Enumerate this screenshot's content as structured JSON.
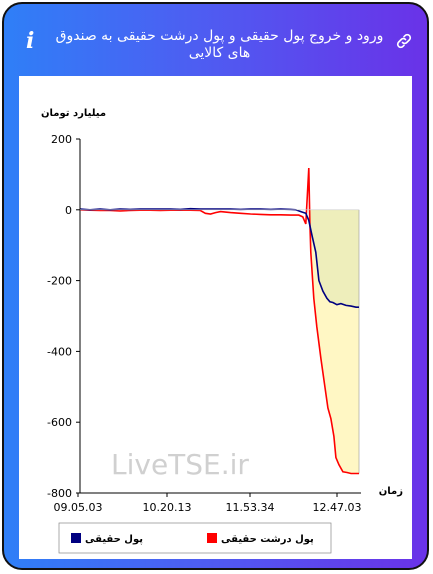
{
  "header": {
    "title": "ورود و خروج پول حقیقی و پول درشت حقیقی به صندوق های کالایی",
    "info_icon": "i",
    "link_icon": "link-icon",
    "info_icon_name": "info-icon"
  },
  "watermark": "LiveTSE.ir",
  "chart_data": {
    "type": "line",
    "ylabel": "میلیارد تومان",
    "xlabel": "زمان",
    "ylim": [
      -800,
      200
    ],
    "yticks": [
      200,
      0,
      -200,
      -400,
      -600,
      -800
    ],
    "xticks": [
      "09.05.03",
      "10.20.13",
      "11.53.34",
      "12.47.03"
    ],
    "grid": false,
    "legend_placement": "bottom",
    "series": [
      {
        "name": "پول حقیقی",
        "color": "#000080",
        "fill": "#eeeebb",
        "points": [
          [
            0,
            2
          ],
          [
            10,
            0
          ],
          [
            20,
            2
          ],
          [
            30,
            0
          ],
          [
            40,
            2
          ],
          [
            50,
            1
          ],
          [
            60,
            2
          ],
          [
            70,
            2
          ],
          [
            80,
            2
          ],
          [
            90,
            2
          ],
          [
            100,
            1
          ],
          [
            110,
            3
          ],
          [
            120,
            2
          ],
          [
            130,
            2
          ],
          [
            140,
            2
          ],
          [
            150,
            2
          ],
          [
            160,
            1
          ],
          [
            170,
            2
          ],
          [
            180,
            2
          ],
          [
            190,
            1
          ],
          [
            200,
            2
          ],
          [
            210,
            1
          ],
          [
            215,
            0
          ],
          [
            220,
            -5
          ],
          [
            225,
            -10
          ],
          [
            228,
            -30
          ],
          [
            231,
            -70
          ],
          [
            235,
            -120
          ],
          [
            238,
            -200
          ],
          [
            242,
            -230
          ],
          [
            246,
            -250
          ],
          [
            249,
            -260
          ],
          [
            252,
            -262
          ],
          [
            256,
            -268
          ],
          [
            260,
            -265
          ],
          [
            265,
            -270
          ],
          [
            270,
            -272
          ],
          [
            275,
            -275
          ],
          [
            278,
            -275
          ]
        ]
      },
      {
        "name": "پول درشت حقیقی",
        "color": "#ff0000",
        "fill": "#fff7c4",
        "points": [
          [
            0,
            0
          ],
          [
            10,
            -1
          ],
          [
            20,
            -2
          ],
          [
            30,
            -2
          ],
          [
            40,
            -3
          ],
          [
            50,
            -2
          ],
          [
            60,
            -1
          ],
          [
            70,
            -1
          ],
          [
            80,
            -2
          ],
          [
            90,
            -1
          ],
          [
            100,
            -1
          ],
          [
            110,
            -1
          ],
          [
            120,
            -2
          ],
          [
            125,
            -10
          ],
          [
            130,
            -12
          ],
          [
            135,
            -8
          ],
          [
            140,
            -5
          ],
          [
            150,
            -8
          ],
          [
            160,
            -10
          ],
          [
            170,
            -12
          ],
          [
            180,
            -13
          ],
          [
            190,
            -14
          ],
          [
            200,
            -14
          ],
          [
            210,
            -15
          ],
          [
            218,
            -15
          ],
          [
            222,
            -20
          ],
          [
            225,
            -40
          ],
          [
            228,
            118
          ],
          [
            229,
            -30
          ],
          [
            230,
            -120
          ],
          [
            233,
            -250
          ],
          [
            236,
            -330
          ],
          [
            240,
            -420
          ],
          [
            244,
            -500
          ],
          [
            247,
            -560
          ],
          [
            250,
            -590
          ],
          [
            253,
            -640
          ],
          [
            255,
            -700
          ],
          [
            258,
            -720
          ],
          [
            262,
            -740
          ],
          [
            266,
            -742
          ],
          [
            270,
            -745
          ],
          [
            275,
            -745
          ],
          [
            278,
            -745
          ]
        ]
      }
    ],
    "x_range": [
      0,
      278
    ]
  }
}
